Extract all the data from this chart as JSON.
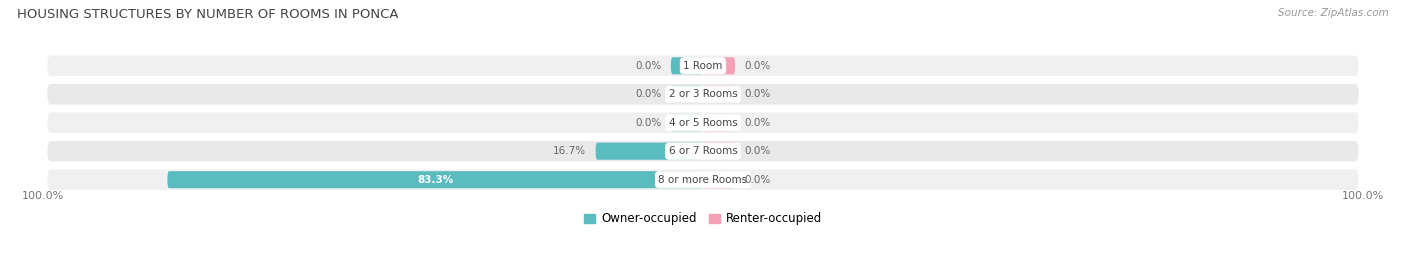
{
  "title": "HOUSING STRUCTURES BY NUMBER OF ROOMS IN PONCA",
  "source": "Source: ZipAtlas.com",
  "categories": [
    "1 Room",
    "2 or 3 Rooms",
    "4 or 5 Rooms",
    "6 or 7 Rooms",
    "8 or more Rooms"
  ],
  "owner_pct": [
    0.0,
    0.0,
    0.0,
    16.7,
    83.3
  ],
  "renter_pct": [
    0.0,
    0.0,
    0.0,
    0.0,
    0.0
  ],
  "owner_color": "#5bbcbf",
  "renter_color": "#f4a0b5",
  "row_bg_odd": "#efefef",
  "row_bg_even": "#e8e8e8",
  "label_color_white": "#ffffff",
  "label_color_dark": "#555555",
  "title_color": "#444444",
  "axis_label_color": "#777777",
  "max_val": 100.0,
  "min_bar_display": 5.0,
  "bar_height": 0.6,
  "background_color": "#ffffff",
  "legend_owner": "Owner-occupied",
  "legend_renter": "Renter-occupied",
  "x_left_label": "100.0%",
  "x_right_label": "100.0%"
}
